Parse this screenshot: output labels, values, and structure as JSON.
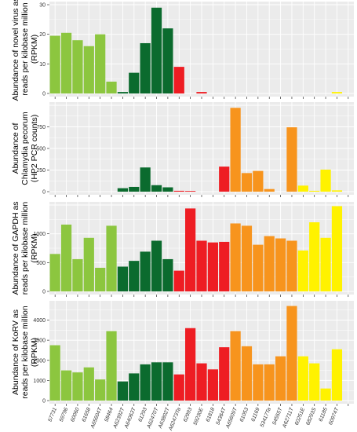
{
  "colors": {
    "panel_bg": "#EBEBEB",
    "grid": "#FFFFFF",
    "group_colors": [
      "#8CC63F",
      "#0B6B2E",
      "#EE1D23",
      "#F7941D",
      "#FFF200"
    ]
  },
  "chart_data": [
    {
      "type": "bar",
      "ylabel": "Abundance of novel virus as reads per kilobase million (RPKM)",
      "ylabel_lines": [
        "Abundance of novel virus as",
        "reads per kilobase million",
        "(RPKM)"
      ],
      "ylim": [
        0,
        30
      ],
      "yticks": [
        0,
        10,
        20,
        30
      ],
      "grid": true,
      "values": [
        19.5,
        20.5,
        18,
        16,
        20,
        4,
        0.5,
        7,
        17,
        29,
        22,
        9,
        0,
        0.5,
        0,
        0,
        0,
        0,
        0,
        0,
        0,
        0,
        0,
        0,
        0,
        0.5,
        0
      ]
    },
    {
      "type": "bar",
      "ylabel": "Abundance of Chlamydia pecorum (HP2 PCR counts)",
      "ylabel_lines": [
        "Abundance of",
        "Chlamydia pecorum",
        "(HP2 PCR counts)"
      ],
      "ylim": [
        0,
        1000
      ],
      "yticks": [
        0,
        250,
        500,
        750
      ],
      "grid": true,
      "values": [
        0,
        0,
        0,
        0,
        0,
        0,
        40,
        55,
        280,
        75,
        50,
        10,
        8,
        0,
        0,
        290,
        970,
        215,
        240,
        30,
        0,
        745,
        70,
        10,
        255,
        15,
        0
      ]
    },
    {
      "type": "bar",
      "ylabel": "Abundance of GAPDH as reads per kilobase million (RPKM)",
      "ylabel_lines": [
        "Abundance of GAPDH as",
        "reads per kilobase million",
        "(RPKM)"
      ],
      "ylim": [
        0,
        1500
      ],
      "yticks": [
        0,
        500,
        1000
      ],
      "grid": true,
      "values": [
        650,
        1160,
        560,
        930,
        410,
        1140,
        430,
        530,
        690,
        880,
        560,
        360,
        1440,
        880,
        850,
        860,
        1180,
        1140,
        810,
        960,
        920,
        880,
        710,
        1200,
        930,
        1480,
        0
      ]
    },
    {
      "type": "bar",
      "ylabel": "Abundance of KoRV as reads per kilobase million (RPKM)",
      "ylabel_lines": [
        "Abundance of KoRV as",
        "reads per kilobase million",
        "(RPKM)"
      ],
      "ylim": [
        0,
        4800
      ],
      "yticks": [
        0,
        1000,
        2000,
        3000,
        4000
      ],
      "grid": true,
      "values": [
        2750,
        1500,
        1400,
        1650,
        1050,
        3450,
        950,
        1350,
        1800,
        1900,
        1900,
        1300,
        3600,
        1850,
        1550,
        2650,
        3450,
        2700,
        1800,
        1800,
        2200,
        4700,
        2200,
        1850,
        600,
        2550,
        0
      ]
    }
  ],
  "categories": [
    "57731",
    "59796",
    "60060",
    "61658",
    "A65604T",
    "58464",
    "A62392T",
    "A64063T",
    "61293",
    "A62470T",
    "A63802T",
    "A62473Ta",
    "62993",
    "59230E",
    "61818",
    "54364T",
    "A65609T",
    "61053",
    "61169",
    "53417Ta",
    "54555T",
    "A62711T",
    "60251E",
    "68293S",
    "61185",
    "60974T",
    ""
  ],
  "groups": [
    0,
    0,
    0,
    0,
    0,
    0,
    1,
    1,
    1,
    1,
    1,
    2,
    2,
    2,
    2,
    2,
    3,
    3,
    3,
    3,
    3,
    3,
    4,
    4,
    4,
    4,
    4
  ],
  "x_labels_shown": [
    "57731",
    "59796",
    "60060",
    "61658",
    "A65604T",
    "58464",
    "A62392T",
    "A64063T",
    "61293",
    "A62470T",
    "A63802T",
    "A62473Ta",
    "62993",
    "59230E",
    "61818",
    "54364T",
    "A65609T",
    "61053",
    "61169",
    "53417Ta",
    "54555T",
    "A62711T",
    "60251E",
    "68293S",
    "61185",
    "60974T"
  ]
}
